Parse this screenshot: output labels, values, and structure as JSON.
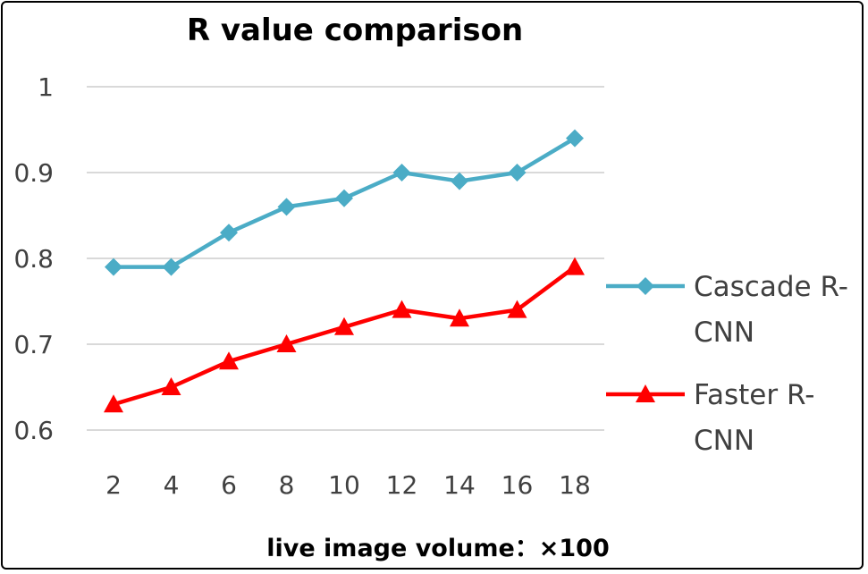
{
  "chart_data": {
    "type": "line",
    "title": "R value comparison",
    "xlabel": "live image volume：×100",
    "ylabel": "",
    "categories": [
      "2",
      "4",
      "6",
      "8",
      "10",
      "12",
      "14",
      "16",
      "18"
    ],
    "ylim": [
      0.6,
      1
    ],
    "yticks": [
      "0.6",
      "0.7",
      "0.8",
      "0.9",
      "1"
    ],
    "ytick_values": [
      0.6,
      0.7,
      0.8,
      0.9,
      1
    ],
    "grid": true,
    "legend_position": "right",
    "series": [
      {
        "name": "Cascade R-CNN",
        "legend_lines": [
          "Cascade R-",
          "CNN"
        ],
        "color": "#4BACC6",
        "marker": "diamond",
        "values": [
          0.79,
          0.79,
          0.83,
          0.86,
          0.87,
          0.9,
          0.89,
          0.9,
          0.94
        ]
      },
      {
        "name": "Faster R-CNN",
        "legend_lines": [
          "Faster R-",
          "CNN"
        ],
        "color": "#FF0000",
        "marker": "triangle",
        "values": [
          0.63,
          0.65,
          0.68,
          0.7,
          0.72,
          0.74,
          0.73,
          0.74,
          0.79
        ]
      }
    ]
  }
}
